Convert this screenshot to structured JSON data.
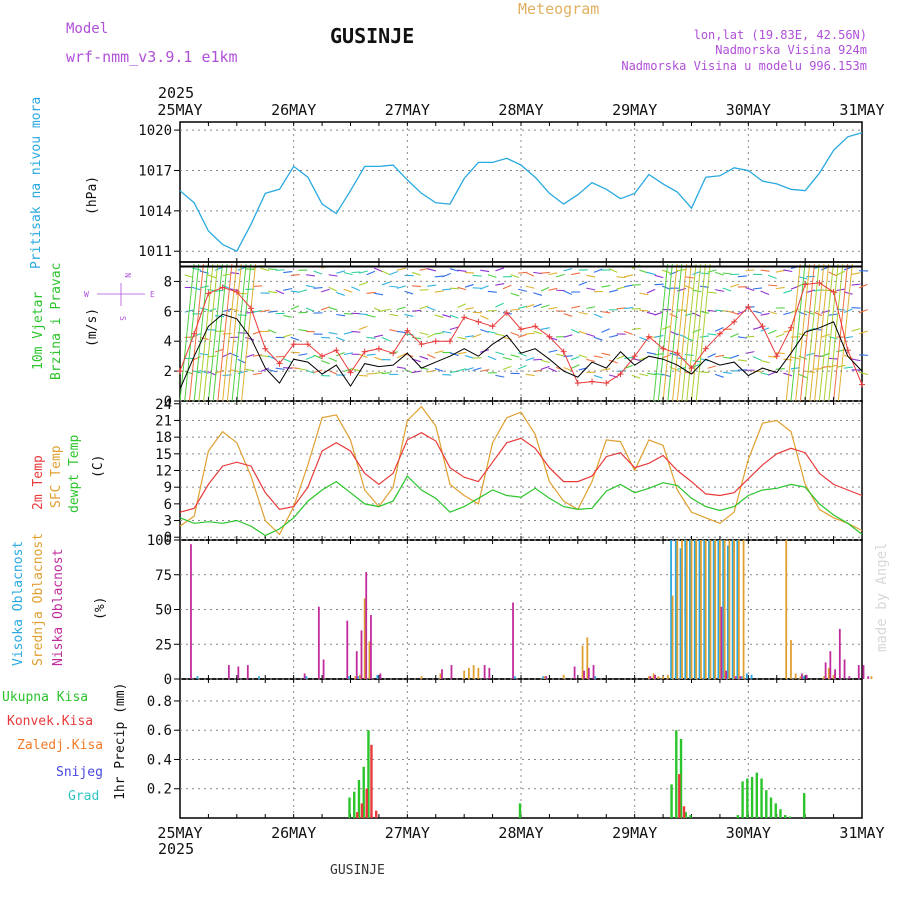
{
  "header": {
    "model_label": "Model",
    "model_name": "wrf-nmm_v3.9.1 e1km",
    "title": "GUSINJE",
    "subtitle": "Meteogram",
    "lonlat": "lon,lat (19.83E, 42.56N)",
    "altitude": "Nadmorska Visina 924m",
    "model_altitude": "Nadmorska Visina u modelu 996.153m",
    "credit": "made by Angel",
    "footer": "GUSINJE"
  },
  "x_axis": {
    "days": [
      "25MAY",
      "26MAY",
      "27MAY",
      "28MAY",
      "29MAY",
      "30MAY",
      "31MAY"
    ],
    "year": "2025"
  },
  "colors": {
    "pressure": "#29a9e0",
    "wind_speed": "#000000",
    "gust": "#e83a3a",
    "t2m": "#e83a3a",
    "tsfc": "#e0a030",
    "dewpt": "#2bc42b",
    "cloud_high": "#29a9e0",
    "cloud_mid": "#e0a030",
    "cloud_low": "#c02c9c",
    "precip_total": "#2bc42b",
    "precip_conv": "#e83a3a",
    "precip_strat": "#f07a28",
    "snow": "#4848e0",
    "graupel": "#30c4c4"
  },
  "panels": {
    "pressure": {
      "ylabel": "Pritisak na nivou mora",
      "unit": "(hPa)"
    },
    "wind": {
      "ylabel1": "10m Vjetar",
      "ylabel2": "Brzina i Pravac",
      "unit": "(m/s)",
      "compass": {
        "n": "N",
        "s": "S",
        "w": "W",
        "e": "E"
      }
    },
    "temp": {
      "label_t2m": "2m Temp",
      "label_tsfc": "SFC Temp",
      "label_dew": "dewpt Temp",
      "unit": "(C)"
    },
    "cloud": {
      "label_high": "Visoka Oblacnost",
      "label_mid": "Srednja Oblacnost",
      "label_low": "Niska Oblacnost",
      "unit": "(%)"
    },
    "precip": {
      "ylabel": "1hr Precip (mm)",
      "legend": [
        "Ukupna Kisa",
        "Konvek.Kisa",
        "Zaledj.Kisa",
        "Snijeg",
        "Grad"
      ]
    }
  },
  "chart_data": [
    {
      "type": "line",
      "title": "",
      "ylabel": "Pritisak na nivou mora (hPa)",
      "yticks": [
        1011,
        1014,
        1017,
        1020
      ],
      "ylim": [
        1010.2,
        1020.6
      ],
      "grid": true,
      "x": [
        0,
        3,
        6,
        9,
        12,
        15,
        18,
        21,
        24,
        27,
        30,
        33,
        36,
        39,
        42,
        45,
        48,
        51,
        54,
        57,
        60,
        63,
        66,
        69,
        72,
        75,
        78,
        81,
        84,
        87,
        90,
        93,
        96,
        99,
        102,
        105,
        108,
        111,
        114,
        117,
        120,
        123,
        126,
        129,
        132,
        135,
        138,
        141,
        144
      ],
      "series": [
        {
          "name": "Pritisak na nivou mora",
          "values": [
            1015.5,
            1014.6,
            1012.5,
            1011.5,
            1011,
            1013,
            1015.3,
            1015.6,
            1017.3,
            1016.5,
            1014.5,
            1013.8,
            1015.5,
            1017.3,
            1017.3,
            1017.4,
            1016.3,
            1015.3,
            1014.6,
            1014.5,
            1016.4,
            1017.6,
            1017.6,
            1017.9,
            1017.4,
            1016.5,
            1015.3,
            1014.5,
            1015.2,
            1016.1,
            1015.6,
            1014.9,
            1015.3,
            1016.7,
            1016.0,
            1015.4,
            1014.2,
            1016.5,
            1016.6,
            1017.2,
            1017.0,
            1016.2,
            1016.0,
            1015.6,
            1015.5,
            1016.8,
            1018.5,
            1019.5,
            1019.8
          ]
        }
      ]
    },
    {
      "type": "line",
      "title": "",
      "ylabel": "10m Vjetar Brzina i Pravac (m/s)",
      "yticks": [
        0,
        2,
        4,
        6,
        8
      ],
      "ylim": [
        0,
        9.3
      ],
      "grid": true,
      "x": [
        0,
        3,
        6,
        9,
        12,
        15,
        18,
        21,
        24,
        27,
        30,
        33,
        36,
        39,
        42,
        45,
        48,
        51,
        54,
        57,
        60,
        63,
        66,
        69,
        72,
        75,
        78,
        81,
        84,
        87,
        90,
        93,
        96,
        99,
        102,
        105,
        108,
        111,
        114,
        117,
        120,
        123,
        126,
        129,
        132,
        135,
        138,
        141,
        144
      ],
      "series": [
        {
          "name": "speed",
          "values": [
            0.8,
            3,
            5,
            5.8,
            5.5,
            4.2,
            2.2,
            1.2,
            2.8,
            2.6,
            1.8,
            2.4,
            1.0,
            2.5,
            2.3,
            2.4,
            3.2,
            2.2,
            2.6,
            3.0,
            3.5,
            3.0,
            3.8,
            4.4,
            3.2,
            3.5,
            2.8,
            2.0,
            1.6,
            2.6,
            2.2,
            3.3,
            2.4,
            3.0,
            2.8,
            2.4,
            1.8,
            2.8,
            2.4,
            2.6,
            1.7,
            2.2,
            1.9,
            3.2,
            4.6,
            4.9,
            5.3,
            3.0,
            2.0
          ]
        },
        {
          "name": "gust",
          "values": [
            2.0,
            4.5,
            7.2,
            7.6,
            7.3,
            6.2,
            3.5,
            2.5,
            3.8,
            3.8,
            3.0,
            3.4,
            1.9,
            3.3,
            3.5,
            3.2,
            4.7,
            3.8,
            4.0,
            4.0,
            5.6,
            5.3,
            5.0,
            5.9,
            4.8,
            5.0,
            4.3,
            3.3,
            1.2,
            1.3,
            1.2,
            1.8,
            3.0,
            4.3,
            3.5,
            3.2,
            2.2,
            3.5,
            4.5,
            5.3,
            6.3,
            5.0,
            3.0,
            4.9,
            7.8,
            7.9,
            7.3,
            3.4,
            1.1
          ]
        }
      ]
    },
    {
      "type": "line",
      "title": "",
      "ylabel": "Temp (C)",
      "yticks": [
        0,
        3,
        6,
        9,
        12,
        15,
        18,
        21,
        24
      ],
      "ylim": [
        -0.5,
        24.5
      ],
      "grid": true,
      "x": [
        0,
        3,
        6,
        9,
        12,
        15,
        18,
        21,
        24,
        27,
        30,
        33,
        36,
        39,
        42,
        45,
        48,
        51,
        54,
        57,
        60,
        63,
        66,
        69,
        72,
        75,
        78,
        81,
        84,
        87,
        90,
        93,
        96,
        99,
        102,
        105,
        108,
        111,
        114,
        117,
        120,
        123,
        126,
        129,
        132,
        135,
        138,
        141,
        144
      ],
      "series": [
        {
          "name": "2m Temp",
          "values": [
            4.5,
            5.2,
            9.5,
            12.8,
            13.5,
            12.8,
            8.0,
            5.0,
            5.5,
            9.0,
            15.5,
            17.0,
            15.5,
            11.5,
            9.5,
            11.5,
            17.5,
            18.8,
            17.3,
            12.5,
            10.8,
            10.0,
            13.5,
            17.0,
            17.8,
            16.0,
            12.5,
            10.0,
            10.0,
            11.0,
            14.5,
            15.2,
            12.5,
            13.3,
            14.7,
            12.0,
            10.0,
            7.8,
            7.5,
            8.0,
            10.5,
            13.0,
            15.0,
            16.0,
            15.2,
            11.5,
            9.5,
            8.5,
            7.5
          ]
        },
        {
          "name": "SFC Temp",
          "values": [
            2.0,
            3.8,
            15.5,
            19.0,
            17.0,
            11.0,
            3.0,
            0.5,
            5.5,
            13.0,
            21.5,
            22.0,
            17.5,
            8.5,
            5.5,
            9.0,
            21.0,
            23.5,
            20.0,
            9.5,
            7.5,
            6.0,
            17.0,
            21.5,
            22.5,
            18.5,
            10.0,
            6.5,
            5.0,
            10.0,
            17.5,
            17.2,
            12.0,
            17.5,
            16.5,
            8.5,
            4.5,
            3.5,
            2.5,
            4.5,
            14.0,
            20.5,
            21.0,
            19.0,
            9.5,
            5.0,
            3.5,
            2.5,
            1.2
          ]
        },
        {
          "name": "dewpt Temp",
          "values": [
            3.5,
            2.5,
            2.8,
            2.5,
            3.0,
            2.0,
            0.3,
            1.5,
            3.5,
            6.5,
            8.5,
            10.0,
            8.0,
            6.0,
            5.5,
            6.5,
            11.0,
            8.5,
            7.0,
            4.5,
            5.5,
            7.0,
            8.5,
            7.5,
            7.2,
            8.8,
            7.0,
            5.5,
            5.0,
            5.2,
            8.3,
            9.5,
            8.0,
            8.8,
            9.8,
            9.3,
            7.0,
            5.5,
            4.8,
            5.5,
            7.5,
            8.5,
            8.8,
            9.5,
            9.0,
            6.0,
            4.0,
            2.5,
            0.5
          ]
        }
      ]
    },
    {
      "type": "bar",
      "title": "",
      "ylabel": "Oblacnost (%)",
      "yticks": [
        0,
        25,
        50,
        75,
        100
      ],
      "ylim": [
        0,
        100
      ],
      "grid": true,
      "series": [
        {
          "name": "Visoka Oblacnost",
          "x": [
            4,
            17,
            27,
            36,
            38,
            42,
            71,
            77,
            88,
            104,
            105,
            106,
            107,
            108,
            109,
            110,
            111,
            112,
            113,
            114,
            115,
            116,
            117,
            118,
            119,
            120,
            121,
            132
          ],
          "values": [
            2,
            2,
            2,
            2,
            2,
            3,
            2,
            2,
            2,
            100,
            100,
            94,
            100,
            100,
            100,
            100,
            100,
            100,
            100,
            100,
            100,
            96,
            100,
            100,
            2,
            4,
            3,
            2
          ]
        },
        {
          "name": "Srednja Oblacnost",
          "x": [
            37,
            38,
            39,
            40,
            51,
            55,
            60,
            61,
            62,
            63,
            77,
            81,
            85,
            86,
            99,
            100,
            101,
            102,
            103,
            104,
            105,
            106,
            107,
            108,
            109,
            110,
            111,
            112,
            113,
            114,
            115,
            116,
            117,
            118,
            119,
            128,
            129,
            130,
            131,
            136,
            137,
            138,
            146
          ],
          "values": [
            2,
            3,
            58,
            27,
            2,
            4,
            6,
            8,
            10,
            8,
            2,
            3,
            24,
            30,
            2,
            4,
            2,
            2,
            3,
            60,
            100,
            100,
            100,
            100,
            100,
            100,
            100,
            100,
            100,
            100,
            100,
            100,
            100,
            100,
            100,
            100,
            28,
            4,
            2,
            2,
            8,
            3,
            2
          ]
        },
        {
          "name": "Niska Oblacnost",
          "x": [
            2,
            10,
            12,
            14,
            26,
            29,
            30,
            35,
            37,
            38,
            39,
            40,
            42,
            55,
            57,
            64,
            65,
            70,
            77,
            83,
            85,
            86,
            87,
            99,
            100,
            114,
            115,
            117,
            118,
            131,
            132,
            136,
            137,
            138,
            139,
            140,
            141,
            143,
            144,
            145
          ],
          "values": [
            97,
            10,
            9,
            10,
            4,
            52,
            14,
            42,
            20,
            35,
            77,
            46,
            4,
            7,
            10,
            10,
            8,
            55,
            2,
            9,
            6,
            8,
            10,
            2,
            3,
            52,
            6,
            2,
            2,
            4,
            3,
            12,
            20,
            7,
            36,
            14,
            2,
            10,
            10,
            2
          ]
        }
      ]
    },
    {
      "type": "bar",
      "title": "",
      "ylabel": "1hr Precip (mm)",
      "yticks": [
        0.2,
        0.4,
        0.6,
        0.8
      ],
      "ylim": [
        0,
        0.95
      ],
      "grid": true,
      "series": [
        {
          "name": "Ukupna Kisa",
          "x": [
            36,
            37,
            38,
            39,
            40,
            72,
            104,
            105,
            106,
            107,
            108,
            118,
            119,
            120,
            121,
            122,
            123,
            124,
            125,
            126,
            127,
            128,
            129,
            132
          ],
          "values": [
            0.14,
            0.18,
            0.26,
            0.35,
            0.6,
            0.1,
            0.23,
            0.6,
            0.54,
            0.04,
            0.02,
            0.02,
            0.25,
            0.27,
            0.28,
            0.31,
            0.27,
            0.19,
            0.14,
            0.1,
            0.06,
            0.02,
            0.01,
            0.17
          ]
        },
        {
          "name": "Konvek.Kisa",
          "x": [
            37,
            38,
            39,
            40,
            41,
            105,
            106
          ],
          "values": [
            0.04,
            0.1,
            0.2,
            0.5,
            0.05,
            0.3,
            0.08
          ]
        }
      ]
    }
  ]
}
